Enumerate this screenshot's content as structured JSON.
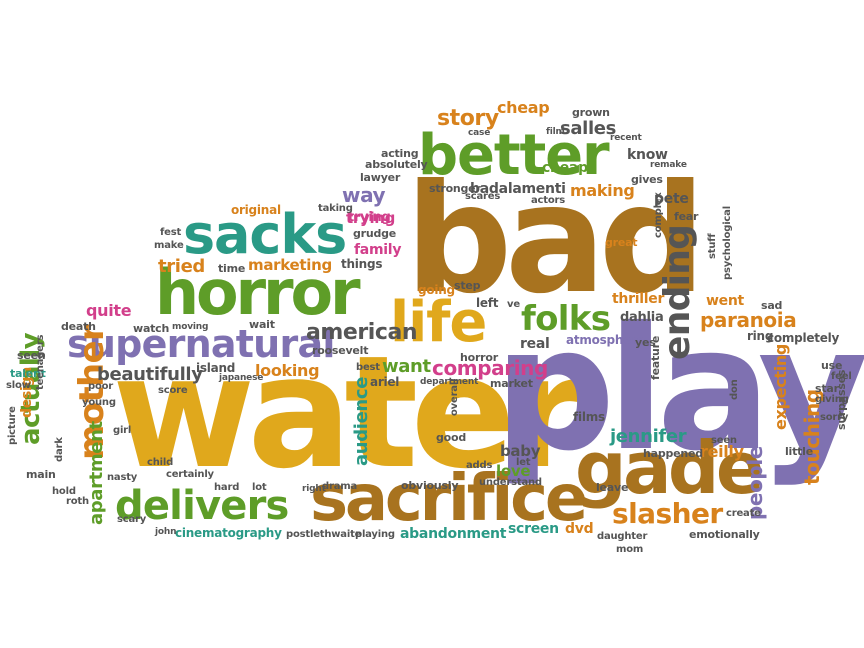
{
  "palette": {
    "gold": "#e0a81c",
    "brown": "#a8731f",
    "purple": "#7f71b1",
    "green": "#5e9d28",
    "teal": "#2a9a86",
    "orange": "#d8821c",
    "magenta": "#d23f8b",
    "dark": "#555555"
  },
  "words": [
    "bad",
    "water",
    "play",
    "sacrifice",
    "gade",
    "better",
    "horror",
    "sacks",
    "life",
    "supernatural",
    "delivers",
    "folks",
    "ending",
    "mother",
    "slasher",
    "story",
    "american",
    "comparing",
    "paranoia",
    "touching",
    "people",
    "beautifully",
    "actually",
    "apartment",
    "jennifer",
    "want",
    "audience",
    "tried",
    "marketing",
    "quite",
    "way",
    "cheap",
    "reilly",
    "expecting",
    "salles",
    "badalamenti",
    "making",
    "love",
    "baby",
    "dvd",
    "screen",
    "abandonment",
    "cinematography",
    "looking",
    "real",
    "trying",
    "family",
    "thriller",
    "went",
    "design",
    "dahlia",
    "know",
    "pete",
    "cheap",
    "little",
    "atmosphere",
    "ring",
    "completely",
    "theater"
  ],
  "small_words": [
    "original",
    "fest",
    "make",
    "trying",
    "grudge",
    "taking",
    "time",
    "things",
    "step",
    "going",
    "left",
    "ve",
    "wait",
    "watch",
    "moving",
    "death",
    "seen",
    "talent",
    "teenagers",
    "slow",
    "picture",
    "main",
    "hold",
    "roth",
    "dark",
    "girl",
    "young",
    "poor",
    "score",
    "island",
    "japanese",
    "nasty",
    "child",
    "certainly",
    "hard",
    "lot",
    "scary",
    "john",
    "postlethwaite",
    "playing",
    "right",
    "drama",
    "obviously",
    "adds",
    "understand",
    "overall",
    "good",
    "market",
    "department",
    "best",
    "roosevelt",
    "ariel",
    "acting",
    "absolutely",
    "lawyer",
    "case",
    "film",
    "recent",
    "grown",
    "remake",
    "gives",
    "scares",
    "actors",
    "stronger",
    "fear",
    "great",
    "complex",
    "horror",
    "yes",
    "sad",
    "use",
    "feel",
    "star",
    "giving",
    "surpasses",
    "sorry",
    "seen",
    "don",
    "leave",
    "daughter",
    "mom",
    "emotionally",
    "create",
    "films",
    "feature",
    "happened",
    "let",
    "stuff",
    "psychological",
    "performance",
    "ring",
    "director",
    "genre",
    "thing",
    "pretty",
    "mystery"
  ]
}
